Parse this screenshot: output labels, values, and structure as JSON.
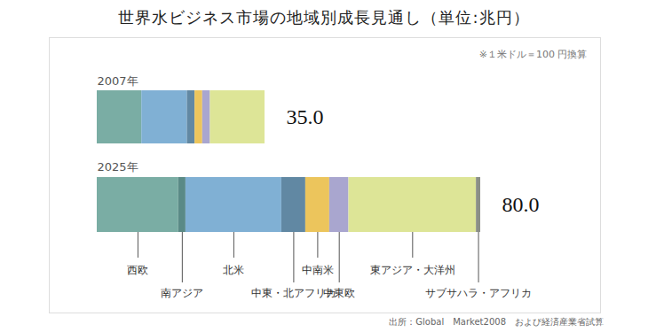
{
  "chart_data": {
    "type": "bar",
    "title": "世界水ビジネス市場の地域別成長見通し（単位:兆円）",
    "note": "※１米ドル＝100 円換算",
    "source": "出所：Global　Market2008　および経済産業省試算",
    "orientation": "horizontal",
    "stacked": true,
    "tick_labels": false,
    "xlim": [
      0,
      80
    ],
    "categories": [
      "2007年",
      "2025年"
    ],
    "totals": [
      35.0,
      80.0
    ],
    "total_labels": [
      "35.0",
      "80.0"
    ],
    "series": [
      {
        "name": "西欧",
        "color": "#7aada4",
        "values": [
          9.3,
          17.0
        ]
      },
      {
        "name": "南アジア",
        "color": "#5a8a86",
        "values": [
          0,
          1.5
        ]
      },
      {
        "name": "北米",
        "color": "#80b0d4",
        "values": [
          9.5,
          20.0
        ]
      },
      {
        "name": "中東・北アフリカ",
        "color": "#6188a3",
        "values": [
          1.6,
          5.0
        ]
      },
      {
        "name": "中南米",
        "color": "#ecc55c",
        "values": [
          1.6,
          5.0
        ]
      },
      {
        "name": "中東欧",
        "color": "#a9a6cf",
        "values": [
          1.6,
          4.0
        ]
      },
      {
        "name": "東アジア・大洋州",
        "color": "#dde597",
        "values": [
          11.4,
          26.6
        ]
      },
      {
        "name": "サブサハラ・アフリカ",
        "color": "#8b8f87",
        "values": [
          0,
          0.9
        ]
      }
    ]
  }
}
